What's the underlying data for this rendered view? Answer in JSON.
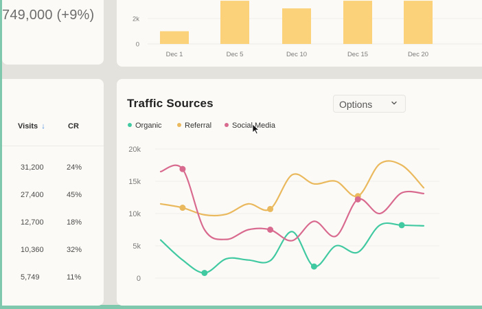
{
  "kpi": {
    "value_text": "749,000 (+9%)"
  },
  "bar_chart": {
    "chart_data": {
      "type": "bar",
      "categories": [
        "Dec 1",
        "Dec 5",
        "Dec 10",
        "Dec 15",
        "Dec 20"
      ],
      "values": [
        1000,
        3400,
        2800,
        3400,
        3400
      ],
      "y_ticks": [
        "0",
        "2k"
      ],
      "ylim": [
        0,
        3400
      ],
      "color": "#fbd27a"
    }
  },
  "table": {
    "headers": {
      "visits": "Visits",
      "visits_sort": "↓",
      "cr": "CR"
    },
    "rows": [
      {
        "visits": "31,200",
        "cr": "24%"
      },
      {
        "visits": "27,400",
        "cr": "45%"
      },
      {
        "visits": "12,700",
        "cr": "18%"
      },
      {
        "visits": "10,360",
        "cr": "32%"
      },
      {
        "visits": "5,749",
        "cr": "11%"
      }
    ]
  },
  "traffic": {
    "title": "Traffic Sources",
    "options_label": "Options",
    "legend": [
      {
        "name": "Organic",
        "color": "#41c9a1"
      },
      {
        "name": "Referral",
        "color": "#eab95d"
      },
      {
        "name": "Social Media",
        "color": "#d96a8f"
      }
    ],
    "chart_data": {
      "type": "line",
      "y_ticks": [
        "0",
        "5k",
        "10k",
        "15k",
        "20k"
      ],
      "ylim": [
        0,
        20000
      ],
      "x": [
        0,
        1,
        2,
        3,
        4,
        5,
        6,
        7,
        8,
        9,
        10,
        11,
        12
      ],
      "series": [
        {
          "name": "Organic",
          "color": "#41c9a1",
          "values": [
            5900,
            2800,
            800,
            3000,
            2800,
            2700,
            7200,
            1800,
            5000,
            4000,
            8200,
            8200,
            8100
          ]
        },
        {
          "name": "Referral",
          "color": "#eab95d",
          "values": [
            11500,
            10900,
            9800,
            9900,
            11500,
            10700,
            16000,
            14600,
            15000,
            12700,
            17700,
            17500,
            14000
          ]
        },
        {
          "name": "Social Media",
          "color": "#d96a8f",
          "values": [
            16500,
            16900,
            7500,
            6000,
            7500,
            7500,
            5800,
            8800,
            6500,
            12200,
            10000,
            13200,
            13100
          ]
        }
      ],
      "markers": {
        "Organic": [
          2,
          7,
          11
        ],
        "Referral": [
          1,
          5,
          9
        ],
        "Social Media": [
          1,
          5,
          9
        ]
      }
    }
  }
}
